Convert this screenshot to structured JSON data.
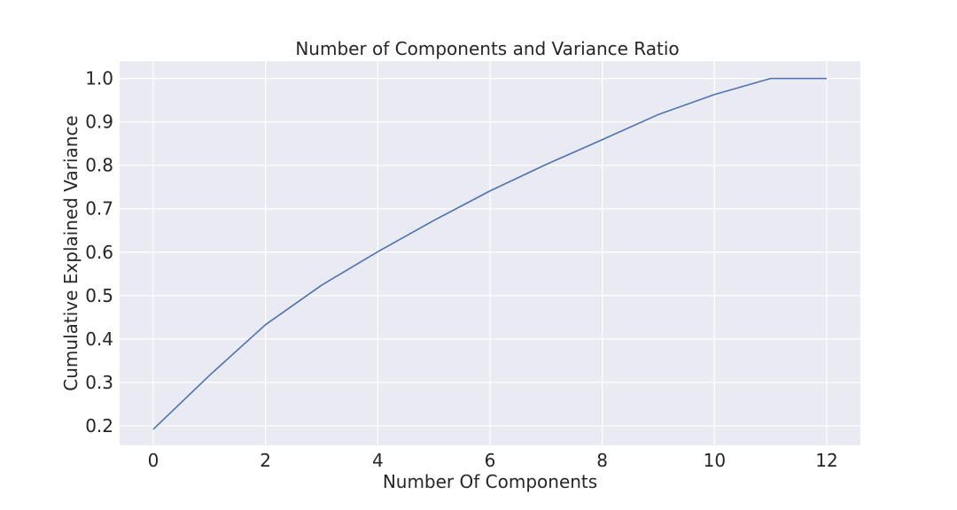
{
  "chart_data": {
    "type": "line",
    "title": "Number of Components and Variance Ratio",
    "xlabel": "Number Of Components",
    "ylabel": "Cumulative Explained Variance",
    "x": [
      0,
      1,
      2,
      3,
      4,
      5,
      6,
      7,
      8,
      9,
      10,
      11,
      12
    ],
    "series": [
      {
        "values": [
          0.192,
          0.316,
          0.433,
          0.524,
          0.601,
          0.673,
          0.741,
          0.802,
          0.859,
          0.917,
          0.963,
          1.0,
          1.0
        ],
        "color": "#4c72b0"
      }
    ],
    "xlim": [
      -0.6,
      12.6
    ],
    "ylim": [
      0.155,
      1.04
    ],
    "xticks": [
      0,
      2,
      4,
      6,
      8,
      10,
      12
    ],
    "xtick_labels": [
      "0",
      "2",
      "4",
      "6",
      "8",
      "10",
      "12"
    ],
    "yticks": [
      0.2,
      0.3,
      0.4,
      0.5,
      0.6,
      0.7,
      0.8,
      0.9,
      1.0
    ],
    "ytick_labels": [
      "0.2",
      "0.3",
      "0.4",
      "0.5",
      "0.6",
      "0.7",
      "0.8",
      "0.9",
      "1.0"
    ],
    "grid": true,
    "legend": "none",
    "background_color": "#eaeaf2",
    "grid_color": "#ffffff"
  }
}
